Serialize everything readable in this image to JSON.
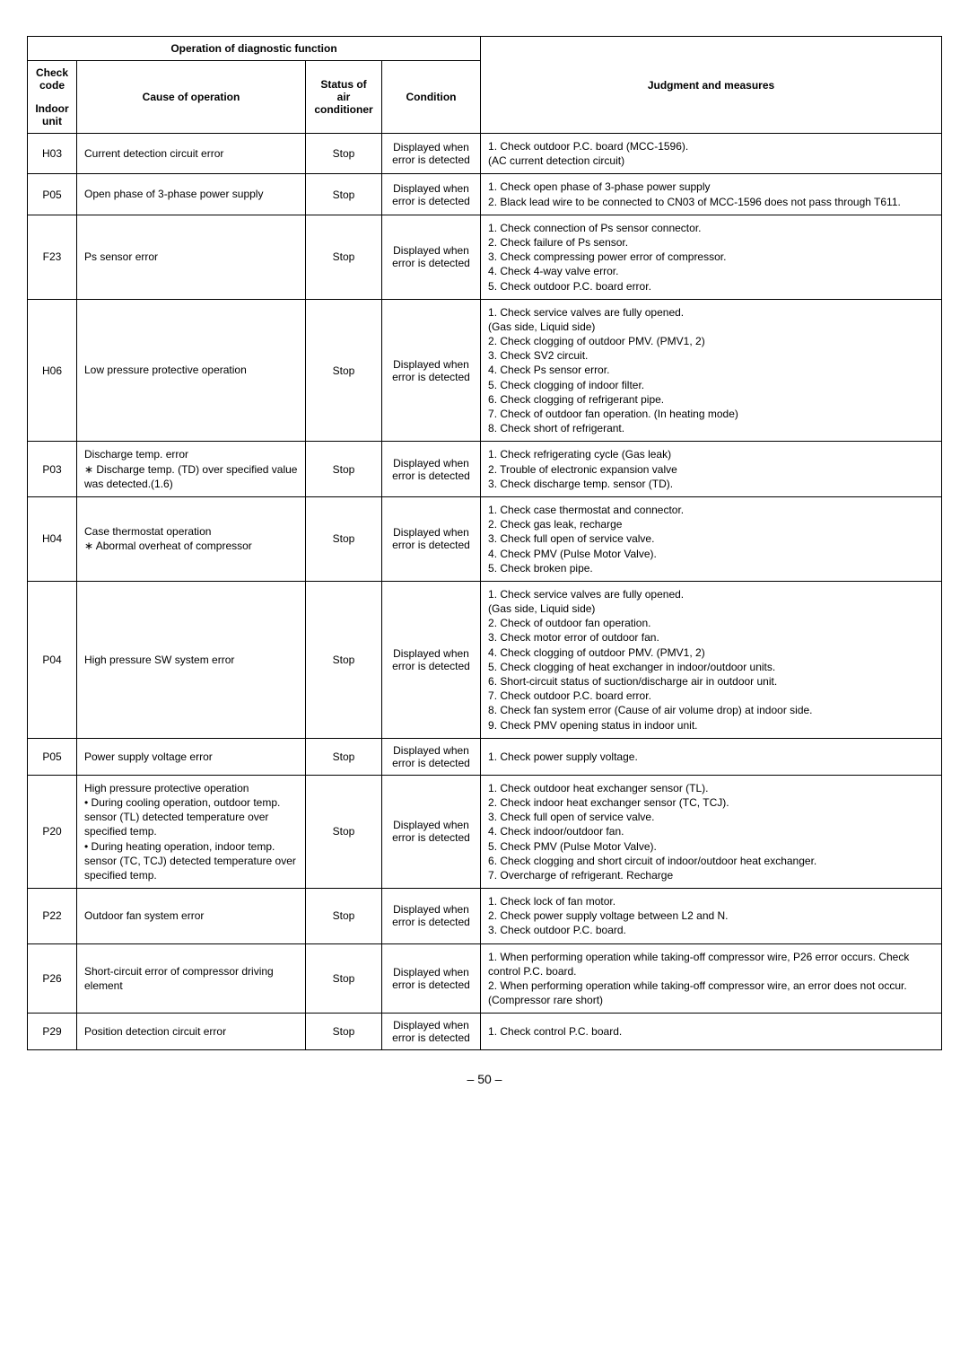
{
  "page_number": "– 50 –",
  "headers": {
    "diag_span": "Operation of diagnostic function",
    "check_code": "Check code",
    "indoor_unit": "Indoor unit",
    "cause": "Cause of operation",
    "status": "Status of air conditioner",
    "condition": "Condition",
    "judgment": "Judgment and measures"
  },
  "rows": [
    {
      "code": "H03",
      "cause": "Current detection circuit error",
      "status": "Stop",
      "condition": "Displayed when error is detected",
      "measures": "1. Check outdoor P.C. board (MCC-1596).\n    (AC current detection circuit)"
    },
    {
      "code": "P05",
      "cause": "Open phase of 3-phase power supply",
      "status": "Stop",
      "condition": "Displayed when error is detected",
      "measures": "1. Check open phase of 3-phase power supply\n2. Black lead wire to be connected to CN03 of MCC-1596 does not pass through T611."
    },
    {
      "code": "F23",
      "cause": "Ps sensor error",
      "status": "Stop",
      "condition": "Displayed when error is detected",
      "measures": "1. Check connection of Ps sensor connector.\n2. Check failure of Ps sensor.\n3. Check compressing power error of compressor.\n4. Check 4-way valve error.\n5. Check outdoor P.C. board error."
    },
    {
      "code": "H06",
      "cause": "Low pressure protective operation",
      "status": "Stop",
      "condition": "Displayed when error is detected",
      "measures": "1. Check service valves are fully opened.\n    (Gas side, Liquid side)\n2. Check clogging of outdoor PMV. (PMV1, 2)\n3. Check SV2 circuit.\n4. Check Ps sensor error.\n5. Check clogging of indoor filter.\n6. Check clogging of refrigerant pipe.\n7. Check of outdoor fan operation. (In heating mode)\n8. Check short of refrigerant."
    },
    {
      "code": "P03",
      "cause": "Discharge temp. error\n∗ Discharge temp. (TD) over specified value was detected.(1.6)",
      "status": "Stop",
      "condition": "Displayed when error is detected",
      "measures": "1. Check refrigerating cycle (Gas leak)\n2. Trouble of electronic expansion valve\n3. Check discharge temp. sensor (TD)."
    },
    {
      "code": "H04",
      "cause": "Case thermostat operation\n∗ Abormal overheat of compressor",
      "status": "Stop",
      "condition": "Displayed when error is detected",
      "measures": "1. Check case thermostat and connector.\n2. Check gas leak, recharge\n3. Check full open of service valve.\n4. Check PMV (Pulse Motor Valve).\n5. Check broken pipe."
    },
    {
      "code": "P04",
      "cause": "High pressure SW system error",
      "status": "Stop",
      "condition": "Displayed when error is detected",
      "measures": "1. Check service valves are fully opened.\n    (Gas side, Liquid side)\n2. Check of outdoor fan operation.\n3. Check motor error of outdoor fan.\n4. Check clogging of outdoor PMV. (PMV1, 2)\n5. Check clogging of heat exchanger in indoor/outdoor units.\n6. Short-circuit status of suction/discharge air in outdoor unit.\n7. Check outdoor P.C. board error.\n8. Check fan system error (Cause of air volume drop) at indoor side.\n9. Check PMV opening status in indoor unit."
    },
    {
      "code": "P05",
      "cause": "Power supply voltage error",
      "status": "Stop",
      "condition": "Displayed when error is detected",
      "measures": "1. Check power supply voltage."
    },
    {
      "code": "P20",
      "cause": "High pressure protective operation\n• During cooling operation, outdoor temp. sensor (TL) detected temperature over specified temp.\n• During heating operation, indoor temp. sensor (TC, TCJ) detected temperature over specified temp.",
      "status": "Stop",
      "condition": "Displayed when error is detected",
      "measures": "1. Check outdoor heat exchanger sensor (TL).\n2. Check indoor heat exchanger sensor (TC, TCJ).\n3. Check full open of service valve.\n4. Check indoor/outdoor fan.\n5.  Check PMV (Pulse Motor Valve).\n6. Check clogging and short circuit of indoor/outdoor heat exchanger.\n7. Overcharge of refrigerant. Recharge"
    },
    {
      "code": "P22",
      "cause": "Outdoor fan system error",
      "status": "Stop",
      "condition": "Displayed when error is detected",
      "measures": "1. Check lock of fan motor.\n2. Check power supply voltage between L2 and N.\n3. Check outdoor P.C. board."
    },
    {
      "code": "P26",
      "cause": "Short-circuit error of compressor driving element",
      "status": "Stop",
      "condition": "Displayed when error is detected",
      "measures": "1. When performing operation while taking-off compressor wire, P26 error occurs. Check control P.C. board.\n2. When performing operation while taking-off compressor wire, an error does not occur. (Compressor rare short)"
    },
    {
      "code": "P29",
      "cause": "Position detection circuit error",
      "status": "Stop",
      "condition": "Displayed when error is detected",
      "measures": "1. Check control P.C. board."
    }
  ]
}
